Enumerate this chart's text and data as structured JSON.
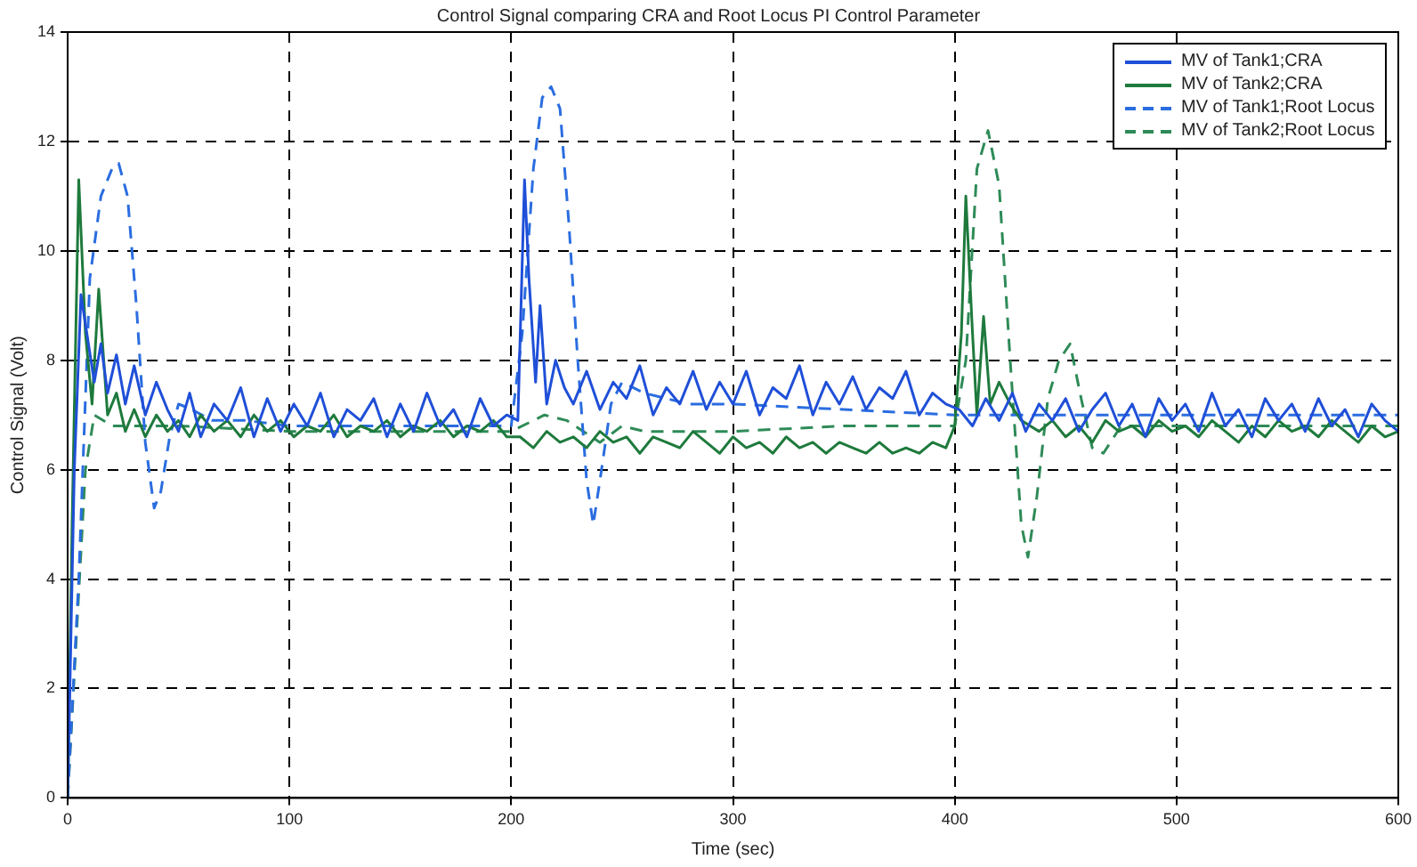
{
  "chart_data": {
    "type": "line",
    "title": "Control Signal comparing CRA and Root Locus PI Control Parameter",
    "xlabel": "Time (sec)",
    "ylabel": "Control Signal (Volt)",
    "xlim": [
      0,
      600
    ],
    "xticks": [
      0,
      100,
      200,
      300,
      400,
      500,
      600
    ],
    "ylim": [
      0,
      14
    ],
    "yticks": [
      0,
      2,
      4,
      6,
      8,
      10,
      12,
      14
    ],
    "grid": true,
    "legend": "top right",
    "marker": "none",
    "series": [
      {
        "name": "MV of Tank1;CRA",
        "color": "#1f4fd8",
        "line_style": "solid",
        "x": [
          0,
          3,
          6,
          9,
          12,
          15,
          18,
          22,
          26,
          30,
          35,
          40,
          45,
          50,
          55,
          60,
          66,
          72,
          78,
          84,
          90,
          96,
          102,
          108,
          114,
          120,
          126,
          132,
          138,
          144,
          150,
          156,
          162,
          168,
          174,
          180,
          186,
          192,
          198,
          203,
          206,
          208,
          211,
          213,
          216,
          220,
          224,
          228,
          234,
          240,
          246,
          252,
          258,
          264,
          270,
          276,
          282,
          288,
          294,
          300,
          306,
          312,
          318,
          324,
          330,
          336,
          342,
          348,
          354,
          360,
          366,
          372,
          378,
          384,
          390,
          396,
          402,
          408,
          414,
          420,
          426,
          432,
          438,
          444,
          450,
          456,
          462,
          468,
          474,
          480,
          486,
          492,
          498,
          504,
          510,
          516,
          522,
          528,
          534,
          540,
          546,
          552,
          558,
          564,
          570,
          576,
          582,
          588,
          594,
          600
        ],
        "values": [
          0,
          6,
          9.2,
          8.4,
          7.6,
          8.3,
          7.4,
          8.1,
          7.2,
          7.9,
          7.0,
          7.6,
          7.1,
          6.7,
          7.4,
          6.6,
          7.2,
          6.9,
          7.5,
          6.6,
          7.3,
          6.7,
          7.2,
          6.8,
          7.4,
          6.6,
          7.1,
          6.9,
          7.3,
          6.6,
          7.2,
          6.7,
          7.4,
          6.8,
          7.1,
          6.6,
          7.3,
          6.8,
          7.0,
          6.9,
          11.3,
          9.5,
          7.6,
          9.0,
          7.2,
          8.0,
          7.5,
          7.2,
          7.8,
          7.1,
          7.6,
          7.3,
          7.9,
          7.0,
          7.5,
          7.2,
          7.8,
          7.1,
          7.6,
          7.2,
          7.8,
          7.0,
          7.5,
          7.3,
          7.9,
          7.0,
          7.6,
          7.2,
          7.7,
          7.1,
          7.5,
          7.3,
          7.8,
          7.0,
          7.4,
          7.2,
          7.1,
          6.8,
          7.3,
          6.9,
          7.4,
          6.7,
          7.2,
          6.9,
          7.3,
          6.7,
          7.1,
          7.4,
          6.8,
          7.2,
          6.6,
          7.3,
          6.9,
          7.2,
          6.7,
          7.4,
          6.8,
          7.1,
          6.6,
          7.3,
          6.9,
          7.2,
          6.7,
          7.3,
          6.8,
          7.1,
          6.6,
          7.2,
          6.9,
          6.7
        ]
      },
      {
        "name": "MV of Tank2;CRA",
        "color": "#1e7a3c",
        "line_style": "solid",
        "x": [
          0,
          2,
          5,
          8,
          11,
          14,
          18,
          22,
          26,
          30,
          35,
          40,
          45,
          50,
          55,
          60,
          66,
          72,
          78,
          84,
          90,
          96,
          102,
          108,
          114,
          120,
          126,
          132,
          138,
          144,
          150,
          156,
          162,
          168,
          174,
          180,
          186,
          192,
          198,
          204,
          210,
          216,
          222,
          228,
          234,
          240,
          246,
          252,
          258,
          264,
          270,
          276,
          282,
          288,
          294,
          300,
          306,
          312,
          318,
          324,
          330,
          336,
          342,
          348,
          354,
          360,
          366,
          372,
          378,
          384,
          390,
          396,
          400,
          403,
          405,
          408,
          410,
          413,
          416,
          420,
          425,
          430,
          438,
          444,
          450,
          456,
          462,
          468,
          474,
          480,
          486,
          492,
          498,
          504,
          510,
          516,
          522,
          528,
          534,
          540,
          546,
          552,
          558,
          564,
          570,
          576,
          582,
          588,
          594,
          600
        ],
        "values": [
          0,
          5,
          11.3,
          8.5,
          7.2,
          9.3,
          7.0,
          7.4,
          6.7,
          7.1,
          6.6,
          7.0,
          6.7,
          6.9,
          6.6,
          7.0,
          6.7,
          6.9,
          6.6,
          7.0,
          6.7,
          6.9,
          6.6,
          6.8,
          6.7,
          7.0,
          6.6,
          6.8,
          6.7,
          6.9,
          6.6,
          6.8,
          6.7,
          6.9,
          6.6,
          6.8,
          6.7,
          6.9,
          6.6,
          6.6,
          6.4,
          6.7,
          6.5,
          6.6,
          6.4,
          6.7,
          6.5,
          6.6,
          6.3,
          6.6,
          6.5,
          6.4,
          6.7,
          6.5,
          6.3,
          6.6,
          6.4,
          6.5,
          6.3,
          6.6,
          6.4,
          6.5,
          6.3,
          6.5,
          6.4,
          6.3,
          6.5,
          6.3,
          6.4,
          6.3,
          6.5,
          6.4,
          6.8,
          8.5,
          11.0,
          8.5,
          7.0,
          8.8,
          7.2,
          7.6,
          7.2,
          6.9,
          6.7,
          6.9,
          6.6,
          6.8,
          6.5,
          6.9,
          6.7,
          6.8,
          6.6,
          6.9,
          6.7,
          6.8,
          6.6,
          6.9,
          6.7,
          6.5,
          6.8,
          6.6,
          6.9,
          6.7,
          6.8,
          6.6,
          6.9,
          6.7,
          6.5,
          6.8,
          6.6,
          6.7
        ]
      },
      {
        "name": "MV of Tank1;Root Locus",
        "color": "#2a6de0",
        "line_style": "dashed",
        "x": [
          0,
          5,
          10,
          15,
          20,
          23,
          27,
          31,
          35,
          39,
          42,
          46,
          50,
          56,
          65,
          80,
          100,
          120,
          140,
          160,
          180,
          200,
          205,
          210,
          214,
          218,
          222,
          226,
          230,
          234,
          237,
          240,
          245,
          250,
          260,
          280,
          300,
          350,
          400,
          450,
          500,
          550,
          600
        ],
        "values": [
          0,
          4,
          9.5,
          11.0,
          11.5,
          11.6,
          11.0,
          9.0,
          6.5,
          5.3,
          5.6,
          6.6,
          7.2,
          7.1,
          6.9,
          6.9,
          6.8,
          6.8,
          6.8,
          6.8,
          6.8,
          6.8,
          8.5,
          11.5,
          12.8,
          13.0,
          12.6,
          10.5,
          8.0,
          5.8,
          5.0,
          5.8,
          7.2,
          7.6,
          7.4,
          7.2,
          7.2,
          7.1,
          7.0,
          7.0,
          7.0,
          7.0,
          7.0
        ]
      },
      {
        "name": "MV of Tank2;Root Locus",
        "color": "#2e8b57",
        "line_style": "dashed",
        "x": [
          0,
          4,
          8,
          12,
          16,
          20,
          30,
          50,
          100,
          150,
          200,
          215,
          225,
          240,
          250,
          260,
          300,
          350,
          400,
          405,
          410,
          415,
          420,
          425,
          430,
          433,
          437,
          442,
          447,
          452,
          457,
          462,
          467,
          475,
          500,
          550,
          600
        ],
        "values": [
          0,
          3,
          6,
          7.0,
          6.9,
          6.8,
          6.8,
          6.8,
          6.7,
          6.7,
          6.7,
          7.0,
          6.9,
          6.5,
          6.8,
          6.7,
          6.7,
          6.8,
          6.8,
          8,
          11.5,
          12.2,
          11.2,
          8,
          5.0,
          4.4,
          5.5,
          7.3,
          8.0,
          8.3,
          7.3,
          6.4,
          6.3,
          6.8,
          6.8,
          6.8,
          6.8
        ]
      }
    ]
  }
}
